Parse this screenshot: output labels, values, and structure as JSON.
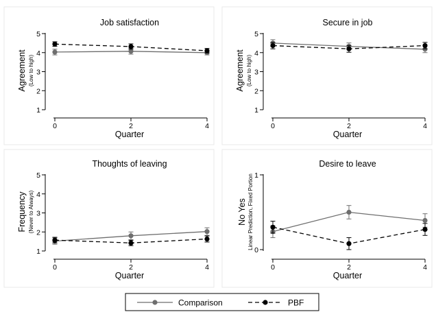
{
  "chart_data": [
    {
      "type": "line",
      "title": "Job satisfaction",
      "xlabel": "Quarter",
      "ylabel": "Agreement",
      "ylabel_sub": "(Low to high)",
      "x": [
        0,
        2,
        4
      ],
      "xticks": [
        "0",
        "2",
        "4"
      ],
      "ylim": [
        1,
        5
      ],
      "yticks": [
        "1",
        "2",
        "3",
        "4",
        "5"
      ],
      "series": [
        {
          "name": "Comparison",
          "values": [
            4.03,
            4.07,
            4.0
          ],
          "ci": [
            [
              3.88,
              4.18
            ],
            [
              3.92,
              4.22
            ],
            [
              3.88,
              4.12
            ]
          ]
        },
        {
          "name": "PBF",
          "values": [
            4.45,
            4.32,
            4.1
          ],
          "ci": [
            [
              4.33,
              4.57
            ],
            [
              4.18,
              4.46
            ],
            [
              3.98,
              4.22
            ]
          ]
        }
      ]
    },
    {
      "type": "line",
      "title": "Secure in job",
      "xlabel": "Quarter",
      "ylabel": "Agreement",
      "ylabel_sub": "(Low to high)",
      "x": [
        0,
        2,
        4
      ],
      "xticks": [
        "0",
        "2",
        "4"
      ],
      "ylim": [
        1,
        5
      ],
      "yticks": [
        "1",
        "2",
        "3",
        "4",
        "5"
      ],
      "series": [
        {
          "name": "Comparison",
          "values": [
            4.5,
            4.33,
            4.18
          ],
          "ci": [
            [
              4.32,
              4.68
            ],
            [
              4.15,
              4.51
            ],
            [
              4.0,
              4.36
            ]
          ]
        },
        {
          "name": "PBF",
          "values": [
            4.37,
            4.2,
            4.37
          ],
          "ci": [
            [
              4.2,
              4.54
            ],
            [
              4.02,
              4.38
            ],
            [
              4.2,
              4.54
            ]
          ]
        }
      ]
    },
    {
      "type": "line",
      "title": "Thoughts of leaving",
      "xlabel": "Quarter",
      "ylabel": "Frequency",
      "ylabel_sub": "(Never to Always)",
      "x": [
        0,
        2,
        4
      ],
      "xticks": [
        "0",
        "2",
        "4"
      ],
      "ylim": [
        1,
        5
      ],
      "yticks": [
        "1",
        "2",
        "3",
        "4",
        "5"
      ],
      "series": [
        {
          "name": "Comparison",
          "values": [
            1.52,
            1.8,
            2.02
          ],
          "ci": [
            [
              1.35,
              1.69
            ],
            [
              1.6,
              2.0
            ],
            [
              1.82,
              2.22
            ]
          ]
        },
        {
          "name": "PBF",
          "values": [
            1.57,
            1.42,
            1.63
          ],
          "ci": [
            [
              1.42,
              1.72
            ],
            [
              1.28,
              1.56
            ],
            [
              1.47,
              1.79
            ]
          ]
        }
      ]
    },
    {
      "type": "line",
      "title": "Desire to leave",
      "xlabel": "Quarter",
      "ylabel": "No Yes",
      "ylabel_sub": "Linear Prediction, Fixed Portion",
      "x": [
        0,
        2,
        4
      ],
      "xticks": [
        "0",
        "2",
        "4"
      ],
      "ylim": [
        0,
        1
      ],
      "yticks": [
        "0",
        "1"
      ],
      "series": [
        {
          "name": "Comparison",
          "values": [
            0.24,
            0.5,
            0.39
          ],
          "ci": [
            [
              0.16,
              0.32
            ],
            [
              0.41,
              0.59
            ],
            [
              0.3,
              0.48
            ]
          ]
        },
        {
          "name": "PBF",
          "values": [
            0.3,
            0.08,
            0.27
          ],
          "ci": [
            [
              0.22,
              0.38
            ],
            [
              0.0,
              0.16
            ],
            [
              0.19,
              0.35
            ]
          ]
        }
      ]
    }
  ],
  "legend": {
    "items": [
      {
        "label": "Comparison",
        "style": "solid",
        "color": "#6e6e6e"
      },
      {
        "label": "PBF",
        "style": "dashed",
        "color": "#000000"
      }
    ]
  },
  "colors": {
    "comparison": "#6e6e6e",
    "pbf": "#000000",
    "frame": "#e8e8e8"
  }
}
